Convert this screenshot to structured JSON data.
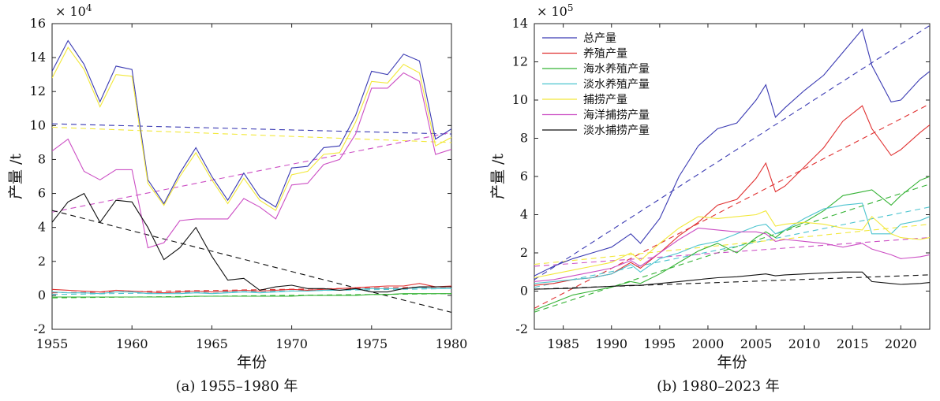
{
  "chart_data": [
    {
      "type": "line",
      "id": "a",
      "caption": "(a)  1955–1980 年",
      "xlabel": "年份",
      "ylabel": "产量 /t",
      "y_exponent_label": "× 10",
      "y_exponent_power": "4",
      "xlim": [
        1955,
        1980
      ],
      "ylim": [
        -2,
        16
      ],
      "x_ticks": [
        1955,
        1960,
        1965,
        1970,
        1975,
        1980
      ],
      "y_ticks": [
        -2,
        0,
        2,
        4,
        6,
        8,
        10,
        12,
        14,
        16
      ],
      "x": [
        1955,
        1956,
        1957,
        1958,
        1959,
        1960,
        1961,
        1962,
        1963,
        1964,
        1965,
        1966,
        1967,
        1968,
        1969,
        1970,
        1971,
        1972,
        1973,
        1974,
        1975,
        1976,
        1977,
        1978,
        1979,
        1980
      ],
      "series": [
        {
          "key": "total",
          "color": "#3b3bb3",
          "values": [
            13.2,
            15.0,
            13.6,
            11.4,
            13.5,
            13.3,
            6.8,
            5.4,
            7.2,
            8.7,
            7.0,
            5.6,
            7.2,
            5.8,
            5.2,
            7.5,
            7.6,
            8.7,
            8.8,
            10.6,
            13.2,
            13.0,
            14.2,
            13.8,
            9.2,
            9.8
          ]
        },
        {
          "key": "culture",
          "color": "#e03131",
          "values": [
            0.35,
            0.3,
            0.25,
            0.2,
            0.3,
            0.25,
            0.2,
            0.15,
            0.2,
            0.25,
            0.2,
            0.25,
            0.3,
            0.25,
            0.3,
            0.35,
            0.3,
            0.35,
            0.4,
            0.45,
            0.5,
            0.55,
            0.55,
            0.7,
            0.5,
            0.55
          ]
        },
        {
          "key": "marine_culture",
          "color": "#36b336",
          "values": [
            -0.1,
            -0.1,
            -0.1,
            -0.1,
            -0.1,
            -0.1,
            -0.1,
            -0.1,
            -0.1,
            -0.05,
            -0.05,
            -0.05,
            -0.05,
            -0.05,
            -0.05,
            -0.05,
            0.0,
            0.0,
            0.0,
            0.0,
            0.05,
            0.05,
            0.1,
            0.1,
            0.1,
            0.1
          ]
        },
        {
          "key": "freshwater_culture",
          "color": "#4cc4cf",
          "values": [
            0.2,
            0.15,
            0.15,
            0.1,
            0.2,
            0.2,
            0.1,
            0.1,
            0.1,
            0.15,
            0.1,
            0.15,
            0.2,
            0.15,
            0.2,
            0.25,
            0.25,
            0.3,
            0.3,
            0.35,
            0.4,
            0.4,
            0.4,
            0.45,
            0.4,
            0.4
          ]
        },
        {
          "key": "fishing",
          "color": "#f2e83a",
          "values": [
            12.8,
            14.6,
            13.3,
            11.1,
            13.0,
            12.9,
            6.6,
            5.3,
            7.0,
            8.4,
            6.8,
            5.4,
            6.9,
            5.6,
            5.0,
            7.1,
            7.3,
            8.3,
            8.4,
            10.2,
            12.6,
            12.5,
            13.6,
            13.1,
            8.8,
            9.3
          ]
        },
        {
          "key": "marine_fishing",
          "color": "#cc4fc4",
          "values": [
            8.5,
            9.2,
            7.3,
            6.8,
            7.4,
            7.4,
            2.8,
            3.1,
            4.4,
            4.5,
            4.5,
            4.5,
            5.7,
            5.2,
            4.5,
            6.5,
            6.6,
            7.7,
            8.0,
            9.5,
            12.2,
            12.2,
            13.1,
            12.6,
            8.3,
            8.6
          ]
        },
        {
          "key": "freshwater_fishing",
          "color": "#111111",
          "values": [
            4.3,
            5.5,
            6.0,
            4.3,
            5.6,
            5.5,
            4.0,
            2.1,
            2.8,
            4.0,
            2.3,
            0.9,
            1.0,
            0.3,
            0.5,
            0.6,
            0.4,
            0.4,
            0.3,
            0.4,
            0.2,
            0.2,
            0.4,
            0.5,
            0.5,
            0.5
          ]
        }
      ],
      "trends": [
        {
          "color": "#3b3bb3",
          "values": [
            10.1,
            9.5
          ]
        },
        {
          "color": "#f2e83a",
          "values": [
            9.9,
            9.0
          ]
        },
        {
          "color": "#cc4fc4",
          "values": [
            4.9,
            9.6
          ]
        },
        {
          "color": "#111111",
          "values": [
            5.0,
            -1.0
          ]
        },
        {
          "color": "#e03131",
          "values": [
            0.15,
            0.5
          ]
        },
        {
          "color": "#4cc4cf",
          "values": [
            0.05,
            0.4
          ]
        },
        {
          "color": "#36b336",
          "values": [
            -0.15,
            0.1
          ]
        }
      ]
    },
    {
      "type": "line",
      "id": "b",
      "caption": "(b)  1980–2023 年",
      "xlabel": "年份",
      "ylabel": "产量 /t",
      "y_exponent_label": "× 10",
      "y_exponent_power": "5",
      "xlim": [
        1982,
        2023
      ],
      "ylim": [
        -2,
        14
      ],
      "x_ticks": [
        1985,
        1990,
        1995,
        2000,
        2005,
        2010,
        2015,
        2020
      ],
      "y_ticks": [
        -2,
        0,
        2,
        4,
        6,
        8,
        10,
        12,
        14
      ],
      "x": [
        1982,
        1984,
        1986,
        1988,
        1990,
        1992,
        1993,
        1995,
        1997,
        1999,
        2001,
        2003,
        2005,
        2006,
        2007,
        2008,
        2010,
        2012,
        2014,
        2016,
        2017,
        2019,
        2020,
        2022,
        2023
      ],
      "series": [
        {
          "key": "total",
          "color": "#3b3bb3",
          "values": [
            0.8,
            1.3,
            1.7,
            2.0,
            2.3,
            3.0,
            2.5,
            3.8,
            6.0,
            7.6,
            8.5,
            8.8,
            10.0,
            10.8,
            9.1,
            9.6,
            10.5,
            11.3,
            12.5,
            13.7,
            11.8,
            9.9,
            10.0,
            11.1,
            11.5
          ]
        },
        {
          "key": "culture",
          "color": "#e03131",
          "values": [
            0.3,
            0.4,
            0.6,
            0.7,
            0.9,
            1.5,
            1.2,
            2.0,
            2.9,
            3.6,
            4.5,
            4.8,
            5.9,
            6.7,
            5.2,
            5.5,
            6.5,
            7.5,
            8.9,
            9.7,
            8.5,
            7.1,
            7.4,
            8.3,
            8.7
          ]
        },
        {
          "key": "marine_culture",
          "color": "#36b336",
          "values": [
            -1.0,
            -0.6,
            -0.2,
            0.0,
            0.2,
            0.5,
            0.4,
            0.9,
            1.5,
            2.1,
            2.5,
            2.0,
            2.8,
            3.1,
            2.8,
            3.2,
            3.6,
            4.2,
            5.0,
            5.2,
            5.3,
            4.5,
            5.0,
            5.8,
            6.0
          ]
        },
        {
          "key": "freshwater_culture",
          "color": "#4cc4cf",
          "values": [
            0.4,
            0.5,
            0.6,
            0.7,
            0.9,
            1.4,
            1.0,
            1.7,
            2.0,
            2.4,
            2.6,
            3.0,
            3.4,
            3.5,
            3.0,
            3.2,
            3.8,
            4.3,
            4.5,
            4.6,
            3.0,
            3.0,
            3.5,
            3.7,
            3.9
          ]
        },
        {
          "key": "fishing",
          "color": "#f2e83a",
          "values": [
            0.7,
            0.9,
            1.1,
            1.3,
            1.5,
            2.0,
            1.6,
            2.5,
            3.3,
            3.9,
            3.8,
            3.9,
            4.0,
            4.2,
            3.4,
            3.5,
            3.6,
            3.5,
            3.3,
            3.2,
            3.9,
            3.0,
            2.8,
            2.7,
            2.8
          ]
        },
        {
          "key": "marine_fishing",
          "color": "#cc4fc4",
          "values": [
            0.5,
            0.6,
            0.8,
            1.0,
            1.2,
            1.6,
            1.3,
            2.0,
            2.7,
            3.3,
            3.2,
            3.1,
            3.1,
            3.0,
            2.6,
            2.7,
            2.6,
            2.5,
            2.3,
            2.5,
            2.2,
            1.9,
            1.7,
            1.8,
            1.9
          ]
        },
        {
          "key": "freshwater_fishing",
          "color": "#111111",
          "values": [
            0.1,
            0.12,
            0.15,
            0.2,
            0.25,
            0.3,
            0.3,
            0.4,
            0.5,
            0.6,
            0.7,
            0.75,
            0.85,
            0.9,
            0.8,
            0.85,
            0.9,
            0.95,
            1.0,
            1.0,
            0.5,
            0.4,
            0.35,
            0.4,
            0.45
          ]
        }
      ],
      "trends": [
        {
          "color": "#3b3bb3",
          "values": [
            0.6,
            13.9
          ]
        },
        {
          "color": "#e03131",
          "values": [
            -0.9,
            9.8
          ]
        },
        {
          "color": "#36b336",
          "values": [
            -1.1,
            5.6
          ]
        },
        {
          "color": "#4cc4cf",
          "values": [
            0.2,
            4.4
          ]
        },
        {
          "color": "#f2e83a",
          "values": [
            1.4,
            3.5
          ]
        },
        {
          "color": "#cc4fc4",
          "values": [
            1.3,
            2.8
          ]
        },
        {
          "color": "#111111",
          "values": [
            0.1,
            0.85
          ]
        }
      ],
      "legend": {
        "placement": "top-left",
        "entries": [
          {
            "label": "总产量",
            "color": "#3b3bb3"
          },
          {
            "label": "养殖产量",
            "color": "#e03131"
          },
          {
            "label": "海水养殖产量",
            "color": "#36b336"
          },
          {
            "label": "淡水养殖产量",
            "color": "#4cc4cf"
          },
          {
            "label": "捕捞产量",
            "color": "#f2e83a"
          },
          {
            "label": "海洋捕捞产量",
            "color": "#cc4fc4"
          },
          {
            "label": "淡水捕捞产量",
            "color": "#111111"
          }
        ]
      }
    }
  ]
}
